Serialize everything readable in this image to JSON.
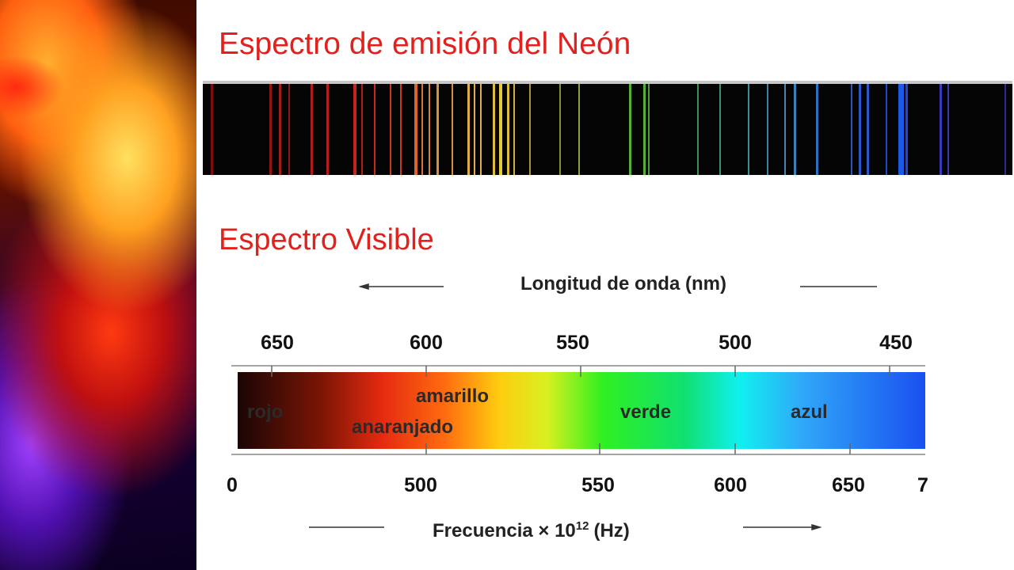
{
  "title": "Espectro de emisión del Neón",
  "subtitle": "Espectro Visible",
  "diagram": {
    "wavelength_label": "Longitud de onda (nm)",
    "wavelength_ticks": [
      "650",
      "600",
      "550",
      "500",
      "450"
    ],
    "frequency_label": {
      "text": "Frecuencia × 10",
      "exponent": "12",
      "unit": "(Hz)"
    },
    "frequency_ticks": [
      "0",
      "500",
      "550",
      "600",
      "650",
      "7"
    ],
    "regions": [
      "rojo",
      "amarillo",
      "anaranjado",
      "verde",
      "azul"
    ]
  }
}
